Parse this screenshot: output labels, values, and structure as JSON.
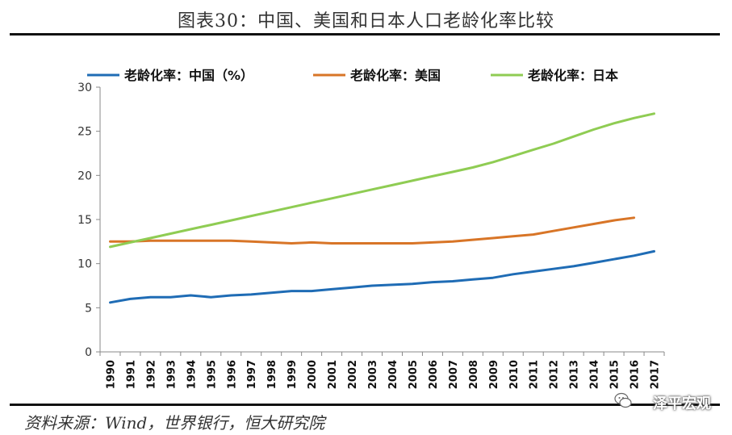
{
  "figure_title": "图表30：中国、美国和日本人口老龄化率比较",
  "source_text": "资料来源：Wind，世界银行，恒大研究院",
  "watermark_text": "泽平宏观",
  "chart_data": {
    "type": "line",
    "title": "",
    "xlabel": "",
    "ylabel": "",
    "ylim": [
      0,
      30
    ],
    "yticks": [
      0,
      5,
      10,
      15,
      20,
      25,
      30
    ],
    "grid": false,
    "legend_position": "top",
    "categories": [
      "1990",
      "1991",
      "1992",
      "1993",
      "1994",
      "1995",
      "1996",
      "1997",
      "1998",
      "1999",
      "2000",
      "2001",
      "2002",
      "2003",
      "2004",
      "2005",
      "2006",
      "2007",
      "2008",
      "2009",
      "2010",
      "2011",
      "2012",
      "2013",
      "2014",
      "2015",
      "2016",
      "2017"
    ],
    "series": [
      {
        "name": "老龄化率：中国（%）",
        "color": "#1f6cb5",
        "values": [
          5.6,
          6.0,
          6.2,
          6.2,
          6.4,
          6.2,
          6.4,
          6.5,
          6.7,
          6.9,
          6.9,
          7.1,
          7.3,
          7.5,
          7.6,
          7.7,
          7.9,
          8.0,
          8.2,
          8.4,
          8.8,
          9.1,
          9.4,
          9.7,
          10.1,
          10.5,
          10.9,
          11.4
        ]
      },
      {
        "name": "老龄化率：美国",
        "color": "#d87527",
        "values": [
          12.5,
          12.5,
          12.6,
          12.6,
          12.6,
          12.6,
          12.6,
          12.5,
          12.4,
          12.3,
          12.4,
          12.3,
          12.3,
          12.3,
          12.3,
          12.3,
          12.4,
          12.5,
          12.7,
          12.9,
          13.1,
          13.3,
          13.7,
          14.1,
          14.5,
          14.9,
          15.2,
          null
        ]
      },
      {
        "name": "老龄化率：日本",
        "color": "#8fcc53",
        "values": [
          11.9,
          12.4,
          12.9,
          13.4,
          13.9,
          14.4,
          14.9,
          15.4,
          15.9,
          16.4,
          16.9,
          17.4,
          17.9,
          18.4,
          18.9,
          19.4,
          19.9,
          20.4,
          20.9,
          21.5,
          22.2,
          22.9,
          23.6,
          24.4,
          25.2,
          25.9,
          26.5,
          27.0
        ]
      }
    ]
  }
}
